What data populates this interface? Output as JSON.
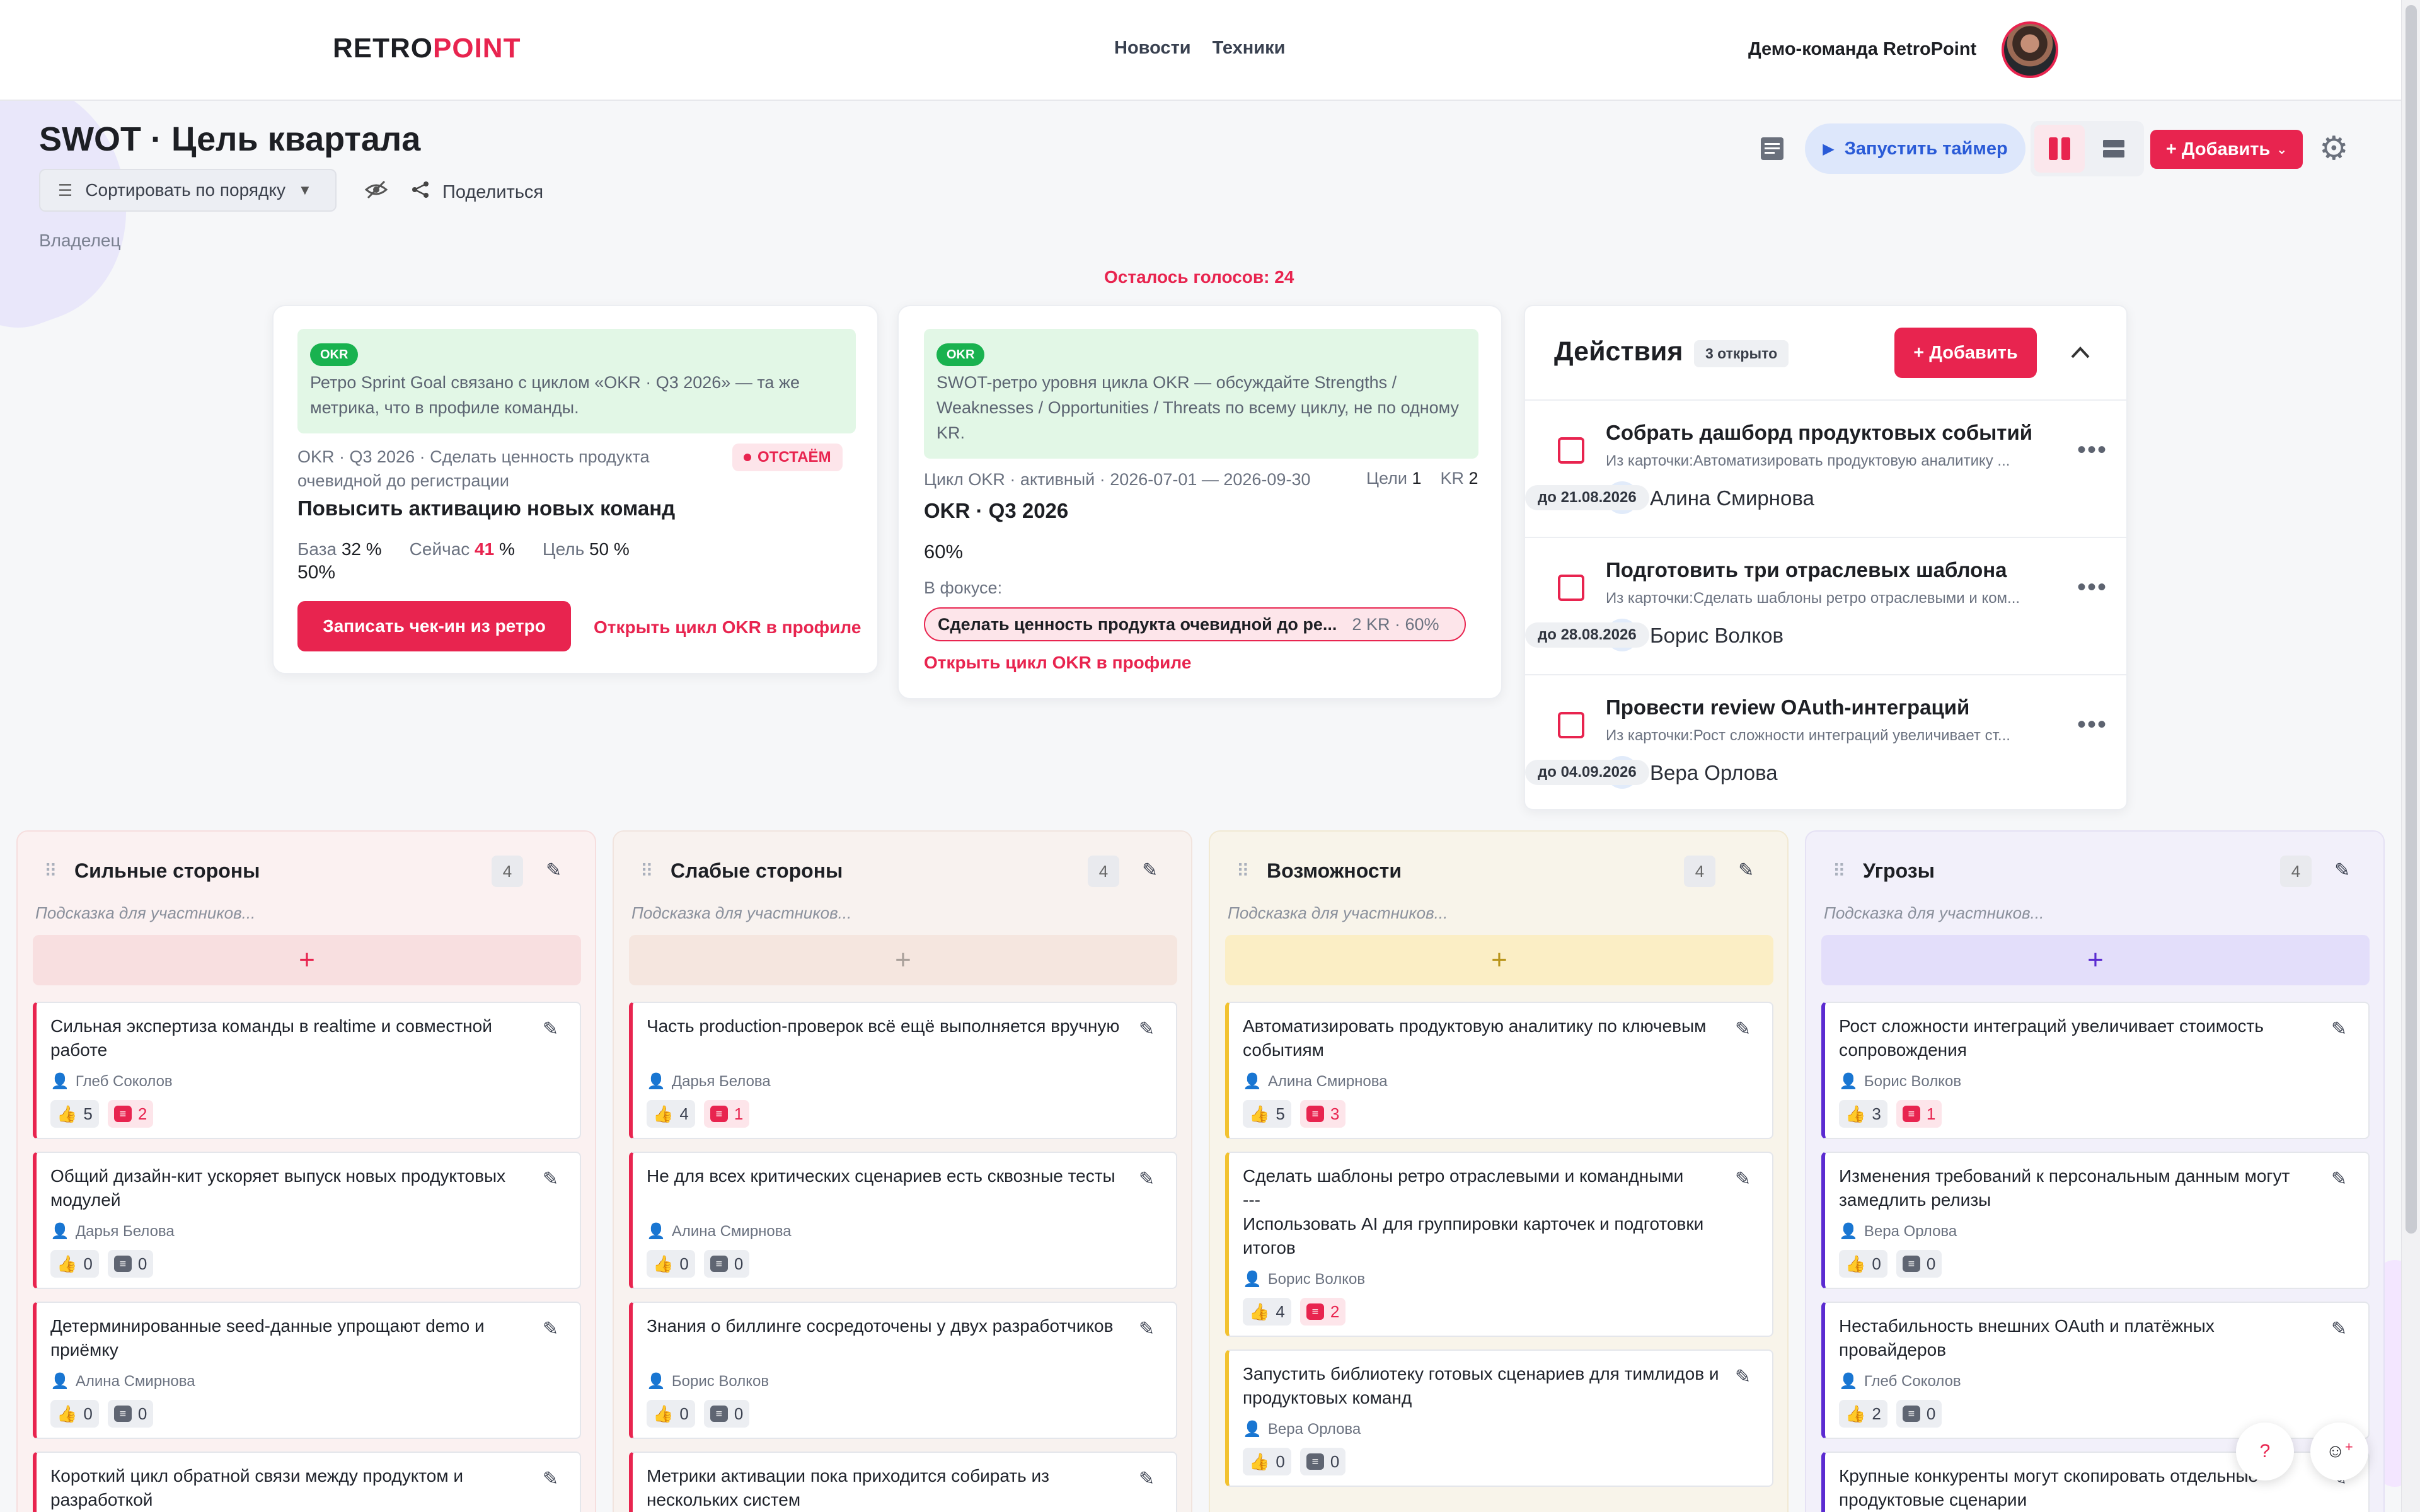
{
  "header": {
    "logo_a": "RETRO",
    "logo_b": "POINT",
    "nav": [
      "Новости",
      "Техники"
    ],
    "team": "Демо-команда RetroPoint"
  },
  "board": {
    "title": "SWOT · Цель квартала",
    "sort_label": "Сортировать по порядку",
    "share_label": "Поделиться",
    "owner_label": "Владелец",
    "votes_left": "Осталось голосов: 24",
    "timer_label": "Запустить таймер",
    "add_label": "+ Добавить"
  },
  "okr_card_1": {
    "tag": "OKR",
    "info": "Ретро Sprint Goal связано с циклом «OKR · Q3 2026» — та же метрика, что в профиле команды.",
    "context": "OKR · Q3 2026 · Сделать ценность продукта очевидной до регистрации",
    "status": "ОТСТАЁМ",
    "kr_title": "Повысить активацию новых команд",
    "base_label": "База",
    "base_value": "32",
    "base_unit": "%",
    "now_label": "Сейчас",
    "now_value": "41",
    "now_unit": "%",
    "goal_label": "Цель",
    "goal_value": "50",
    "goal_unit": "%",
    "extra_value": "50%",
    "checkin_button": "Записать чек-ин из ретро",
    "open_link": "Открыть цикл OKR в профиле"
  },
  "okr_card_2": {
    "tag": "OKR",
    "info": "SWOT-ретро уровня цикла OKR — обсуждайте Strengths / Weaknesses / Opportunities / Threats по всему циклу, не по одному KR.",
    "cycle_meta": "Цикл OKR · активный · 2026-07-01 — 2026-09-30",
    "goals_label": "Цели",
    "goals_count": "1",
    "kr_label": "KR",
    "kr_count": "2",
    "cycle_title": "OKR · Q3 2026",
    "progress": "60%",
    "focus_label": "В фокусе:",
    "focus_item": "Сделать ценность продукта очевидной до ре...",
    "focus_stats": "2 KR · 60%",
    "open_link": "Открыть цикл OKR в профиле"
  },
  "actions": {
    "title": "Действия",
    "open_count": "3 открыто",
    "add_label": "+ Добавить",
    "items": [
      {
        "title": "Собрать дашборд продуктовых событий",
        "source": "Из карточки:Автоматизировать продуктовую аналитику ...",
        "initials": "АС",
        "name": "Алина Смирнова",
        "due": "до 21.08.2026"
      },
      {
        "title": "Подготовить три отраслевых шаблона",
        "source": "Из карточки:Сделать шаблоны ретро отраслевыми и ком...",
        "initials": "БВ",
        "name": "Борис Волков",
        "due": "до 28.08.2026"
      },
      {
        "title": "Провести review OAuth-интеграций",
        "source": "Из карточки:Рост сложности интеграций увеличивает ст...",
        "initials": "ВО",
        "name": "Вера Орлова",
        "due": "до 04.09.2026"
      }
    ]
  },
  "columns": [
    {
      "title": "Сильные стороны",
      "count": "4",
      "hint": "Подсказка для участников...",
      "accent": "#e8244f",
      "bg": "#fbf1f1",
      "border": "#f6dede",
      "plus_bg": "#f8dfe0",
      "cards": [
        {
          "text": "Сильная экспертиза команды в realtime и совместной работе",
          "author": "Глеб Соколов",
          "likes": "5",
          "comments": "2"
        },
        {
          "text": "Общий дизайн-кит ускоряет выпуск новых продуктовых модулей",
          "author": "Дарья Белова",
          "likes": "0",
          "comments": "0"
        },
        {
          "text": "Детерминированные seed-данные упрощают demo и приёмку",
          "author": "Алина Смирнова",
          "likes": "0",
          "comments": "0"
        },
        {
          "text": "Короткий цикл обратной связи между продуктом и разработкой",
          "author": "",
          "likes": "",
          "comments": ""
        }
      ]
    },
    {
      "title": "Слабые стороны",
      "count": "4",
      "hint": "Подсказка для участников...",
      "accent": "#e8244f",
      "bg": "#f8f2ef",
      "border": "#f1e4de",
      "plus_bg": "#f5e6df",
      "cards": [
        {
          "text": "Часть production-проверок всё ещё выполняется вручную",
          "author": "Дарья Белова",
          "likes": "4",
          "comments": "1"
        },
        {
          "text": "Не для всех критических сценариев есть сквозные тесты",
          "author": "Алина Смирнова",
          "likes": "0",
          "comments": "0"
        },
        {
          "text": "Знания о биллинге сосредоточены у двух разработчиков",
          "author": "Борис Волков",
          "likes": "0",
          "comments": "0"
        },
        {
          "text": "Метрики активации пока приходится собирать из нескольких систем",
          "author": "",
          "likes": "",
          "comments": ""
        }
      ]
    },
    {
      "title": "Возможности",
      "count": "4",
      "hint": "Подсказка для участников...",
      "accent": "#f2c230",
      "bg": "#f8f4ea",
      "border": "#f1e9d3",
      "plus_bg": "#fbeec5",
      "cards": [
        {
          "text": "Автоматизировать продуктовую аналитику по ключевым событиям",
          "author": "Алина Смирнова",
          "likes": "5",
          "comments": "3"
        },
        {
          "text": "Сделать шаблоны ретро отраслевыми и командными\n---\nИспользовать AI для группировки карточек и подготовки итогов",
          "author": "Борис Волков",
          "likes": "4",
          "comments": "2"
        },
        {
          "text": "Запустить библиотеку готовых сценариев для тимлидов и продуктовых команд",
          "author": "Вера Орлова",
          "likes": "0",
          "comments": "0"
        }
      ]
    },
    {
      "title": "Угрозы",
      "count": "4",
      "hint": "Подсказка для участников...",
      "accent": "#5b2bd1",
      "bg": "#f2f0fa",
      "border": "#e5e1f4",
      "plus_bg": "#e3defa",
      "cards": [
        {
          "text": "Рост сложности интеграций увеличивает стоимость сопровождения",
          "author": "Борис Волков",
          "likes": "3",
          "comments": "1"
        },
        {
          "text": "Изменения требований к персональным данным могут замедлить релизы",
          "author": "Вера Орлова",
          "likes": "0",
          "comments": "0"
        },
        {
          "text": "Нестабильность внешних OAuth и платёжных провайдеров",
          "author": "Глеб Соколов",
          "likes": "2",
          "comments": "0"
        },
        {
          "text": "Крупные конкуренты могут скопировать отдельные продуктовые сценарии",
          "author": "",
          "likes": "",
          "comments": ""
        }
      ]
    }
  ],
  "floating": {
    "help": "?",
    "emoji": "☺"
  }
}
